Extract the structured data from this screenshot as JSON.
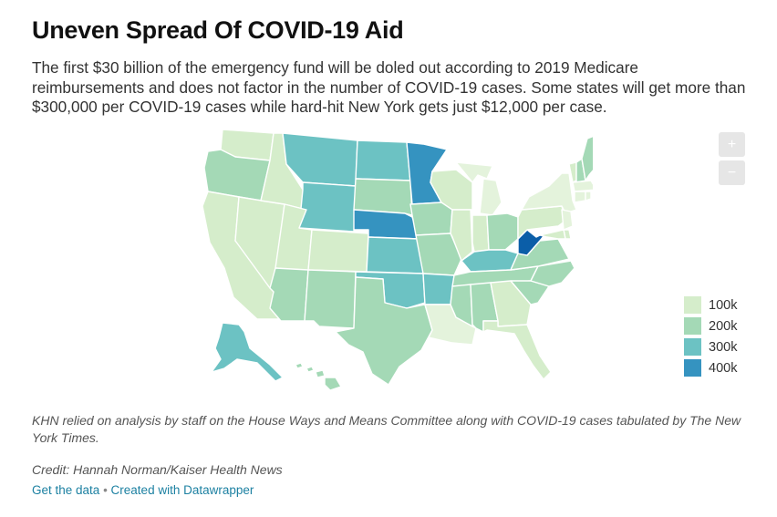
{
  "header": {
    "title": "Uneven Spread Of COVID-19 Aid",
    "description": "The first $30 billion of the emergency fund will be doled out according to 2019 Medicare reimbursements and does not factor in the number of COVID-19 cases. Some states will get more than $300,000 per COVID-19 cases while hard-hit New York gets just $12,000 per case."
  },
  "zoom": {
    "in_label": "+",
    "out_label": "−"
  },
  "legend": {
    "items": [
      {
        "label": "100k",
        "color": "#d5edcb"
      },
      {
        "label": "200k",
        "color": "#a4d9b6"
      },
      {
        "label": "300k",
        "color": "#6cc2c3"
      },
      {
        "label": "400k",
        "color": "#3593c0"
      }
    ]
  },
  "map": {
    "colors": {
      "c0": "#e4f3dc",
      "c1": "#d5edcb",
      "c2": "#a4d9b6",
      "c3": "#6cc2c3",
      "c4": "#3593c0",
      "c5": "#0b5ea8"
    },
    "states": [
      {
        "name": "Washington",
        "tier": "c1"
      },
      {
        "name": "Oregon",
        "tier": "c2"
      },
      {
        "name": "California",
        "tier": "c1"
      },
      {
        "name": "Nevada",
        "tier": "c1"
      },
      {
        "name": "Idaho",
        "tier": "c1"
      },
      {
        "name": "Montana",
        "tier": "c3"
      },
      {
        "name": "Wyoming",
        "tier": "c3"
      },
      {
        "name": "Utah",
        "tier": "c1"
      },
      {
        "name": "Colorado",
        "tier": "c1"
      },
      {
        "name": "Arizona",
        "tier": "c2"
      },
      {
        "name": "New Mexico",
        "tier": "c2"
      },
      {
        "name": "North Dakota",
        "tier": "c3"
      },
      {
        "name": "South Dakota",
        "tier": "c2"
      },
      {
        "name": "Nebraska",
        "tier": "c4"
      },
      {
        "name": "Kansas",
        "tier": "c3"
      },
      {
        "name": "Oklahoma",
        "tier": "c3"
      },
      {
        "name": "Texas",
        "tier": "c2"
      },
      {
        "name": "Minnesota",
        "tier": "c4"
      },
      {
        "name": "Iowa",
        "tier": "c2"
      },
      {
        "name": "Missouri",
        "tier": "c2"
      },
      {
        "name": "Arkansas",
        "tier": "c3"
      },
      {
        "name": "Louisiana",
        "tier": "c0"
      },
      {
        "name": "Wisconsin",
        "tier": "c1"
      },
      {
        "name": "Illinois",
        "tier": "c1"
      },
      {
        "name": "Michigan",
        "tier": "c0"
      },
      {
        "name": "Indiana",
        "tier": "c1"
      },
      {
        "name": "Ohio",
        "tier": "c2"
      },
      {
        "name": "Kentucky",
        "tier": "c3"
      },
      {
        "name": "Tennessee",
        "tier": "c2"
      },
      {
        "name": "Mississippi",
        "tier": "c2"
      },
      {
        "name": "Alabama",
        "tier": "c2"
      },
      {
        "name": "Georgia",
        "tier": "c1"
      },
      {
        "name": "Florida",
        "tier": "c1"
      },
      {
        "name": "South Carolina",
        "tier": "c2"
      },
      {
        "name": "North Carolina",
        "tier": "c2"
      },
      {
        "name": "Virginia",
        "tier": "c2"
      },
      {
        "name": "West Virginia",
        "tier": "c5"
      },
      {
        "name": "Pennsylvania",
        "tier": "c1"
      },
      {
        "name": "New York",
        "tier": "c0"
      },
      {
        "name": "Vermont",
        "tier": "c1"
      },
      {
        "name": "New Hampshire",
        "tier": "c2"
      },
      {
        "name": "Maine",
        "tier": "c2"
      },
      {
        "name": "Massachusetts",
        "tier": "c0"
      },
      {
        "name": "Connecticut",
        "tier": "c0"
      },
      {
        "name": "Rhode Island",
        "tier": "c0"
      },
      {
        "name": "New Jersey",
        "tier": "c0"
      },
      {
        "name": "Delaware",
        "tier": "c1"
      },
      {
        "name": "Maryland",
        "tier": "c1"
      },
      {
        "name": "Alaska",
        "tier": "c3"
      },
      {
        "name": "Hawaii",
        "tier": "c2"
      }
    ]
  },
  "notes": {
    "text": "KHN relied on analysis by staff on the House Ways and Means Committee along with COVID-19 cases tabulated by The New York Times.",
    "credit": "Credit: Hannah Norman/Kaiser Health News"
  },
  "footer": {
    "get_data": "Get the data",
    "separator": " • ",
    "created_with": "Created with Datawrapper"
  }
}
